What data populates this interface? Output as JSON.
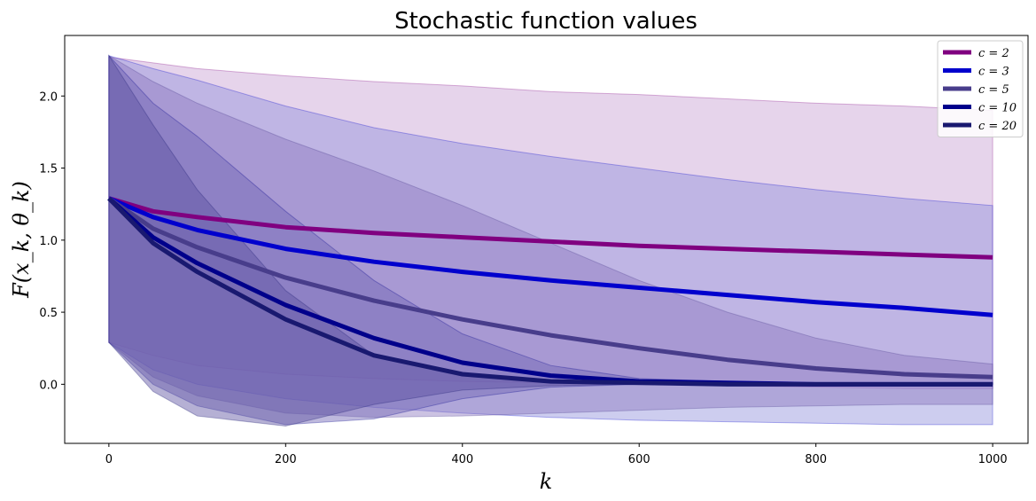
{
  "chart_data": {
    "type": "line",
    "title": "Stochastic function values",
    "xlabel": "k",
    "ylabel": "F(x_k, θ_k)",
    "xlim": [
      -50,
      1040
    ],
    "ylim": [
      -0.41,
      2.42
    ],
    "xticks": [
      0,
      200,
      400,
      600,
      800,
      1000
    ],
    "yticks": [
      0.0,
      0.5,
      1.0,
      1.5,
      2.0
    ],
    "xtick_labels": [
      "0",
      "200",
      "400",
      "600",
      "800",
      "1000"
    ],
    "ytick_labels": [
      "0.0",
      "0.5",
      "1.0",
      "1.5",
      "2.0"
    ],
    "grid": false,
    "legend_position": "top-right",
    "series": [
      {
        "name": "c = 2",
        "color": "#800080",
        "band_color": "#c8a0d2",
        "x": [
          0,
          50,
          100,
          200,
          300,
          400,
          500,
          600,
          700,
          800,
          900,
          1000
        ],
        "y": [
          1.29,
          1.2,
          1.16,
          1.09,
          1.05,
          1.02,
          0.99,
          0.96,
          0.94,
          0.92,
          0.9,
          0.88
        ],
        "upper": [
          2.27,
          2.23,
          2.19,
          2.14,
          2.1,
          2.07,
          2.03,
          2.01,
          1.98,
          1.95,
          1.93,
          1.9
        ],
        "lower": [
          0.29,
          0.2,
          0.13,
          0.07,
          0.04,
          0.02,
          0.01,
          0.0,
          -0.01,
          -0.02,
          -0.03,
          -0.03
        ]
      },
      {
        "name": "c = 3",
        "color": "#0000cd",
        "band_color": "#9090dc",
        "x": [
          0,
          50,
          100,
          200,
          300,
          400,
          500,
          600,
          700,
          800,
          900,
          1000
        ],
        "y": [
          1.29,
          1.16,
          1.07,
          0.94,
          0.85,
          0.78,
          0.72,
          0.67,
          0.62,
          0.57,
          0.53,
          0.48
        ],
        "upper": [
          2.28,
          2.19,
          2.11,
          1.93,
          1.78,
          1.67,
          1.58,
          1.5,
          1.42,
          1.35,
          1.29,
          1.24
        ],
        "lower": [
          0.29,
          0.1,
          0.0,
          -0.1,
          -0.16,
          -0.2,
          -0.23,
          -0.25,
          -0.26,
          -0.27,
          -0.28,
          -0.28
        ]
      },
      {
        "name": "c = 5",
        "color": "#483d8b",
        "band_color": "#8c78be",
        "x": [
          0,
          50,
          100,
          200,
          300,
          400,
          500,
          600,
          700,
          800,
          900,
          1000
        ],
        "y": [
          1.29,
          1.08,
          0.95,
          0.74,
          0.58,
          0.45,
          0.34,
          0.25,
          0.17,
          0.11,
          0.07,
          0.05
        ],
        "upper": [
          2.28,
          2.1,
          1.95,
          1.7,
          1.48,
          1.24,
          0.98,
          0.72,
          0.5,
          0.32,
          0.2,
          0.14
        ],
        "lower": [
          0.29,
          0.05,
          -0.08,
          -0.2,
          -0.23,
          -0.22,
          -0.2,
          -0.18,
          -0.16,
          -0.15,
          -0.14,
          -0.14
        ]
      },
      {
        "name": "c = 10",
        "color": "#00008b",
        "band_color": "#6e64b4",
        "x": [
          0,
          50,
          100,
          200,
          300,
          400,
          500,
          600,
          700,
          800,
          900,
          1000
        ],
        "y": [
          1.29,
          1.02,
          0.84,
          0.55,
          0.32,
          0.15,
          0.06,
          0.02,
          0.01,
          0.0,
          0.0,
          0.0
        ],
        "upper": [
          2.28,
          1.95,
          1.72,
          1.2,
          0.72,
          0.35,
          0.13,
          0.04,
          0.02,
          0.01,
          0.01,
          0.01
        ],
        "lower": [
          0.29,
          0.0,
          -0.15,
          -0.28,
          -0.24,
          -0.1,
          -0.02,
          0.0,
          0.0,
          0.0,
          0.0,
          0.0
        ]
      },
      {
        "name": "c = 20",
        "color": "#191970",
        "band_color": "#5a50a0",
        "x": [
          0,
          50,
          100,
          200,
          300,
          400,
          500,
          600,
          700,
          800,
          900,
          1000
        ],
        "y": [
          1.29,
          0.98,
          0.78,
          0.45,
          0.2,
          0.07,
          0.02,
          0.01,
          0.0,
          0.0,
          0.0,
          0.0
        ],
        "upper": [
          2.28,
          1.8,
          1.35,
          0.65,
          0.2,
          0.06,
          0.02,
          0.01,
          0.01,
          0.01,
          0.01,
          0.01
        ],
        "lower": [
          0.29,
          -0.05,
          -0.22,
          -0.29,
          -0.14,
          -0.04,
          -0.01,
          0.0,
          0.0,
          0.0,
          0.0,
          0.0
        ]
      }
    ]
  }
}
